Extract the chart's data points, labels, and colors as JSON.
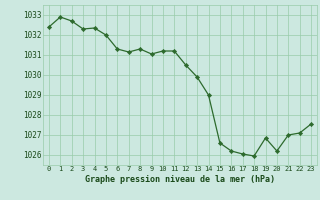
{
  "x": [
    0,
    1,
    2,
    3,
    4,
    5,
    6,
    7,
    8,
    9,
    10,
    11,
    12,
    13,
    14,
    15,
    16,
    17,
    18,
    19,
    20,
    21,
    22,
    23
  ],
  "y": [
    1032.4,
    1032.9,
    1032.7,
    1032.3,
    1032.35,
    1032.0,
    1031.3,
    1031.15,
    1031.3,
    1031.05,
    1031.2,
    1031.2,
    1030.5,
    1029.9,
    1029.0,
    1026.6,
    1026.2,
    1026.05,
    1025.95,
    1026.85,
    1026.2,
    1027.0,
    1027.1,
    1027.55
  ],
  "line_color": "#2d6a2d",
  "marker_color": "#2d6a2d",
  "bg_color": "#cce8e0",
  "grid_color": "#99ccaa",
  "xlabel": "Graphe pression niveau de la mer (hPa)",
  "xlabel_color": "#1a4a1a",
  "tick_color": "#1a4a1a",
  "ylim": [
    1025.5,
    1033.5
  ],
  "yticks": [
    1026,
    1027,
    1028,
    1029,
    1030,
    1031,
    1032,
    1033
  ],
  "xticks": [
    0,
    1,
    2,
    3,
    4,
    5,
    6,
    7,
    8,
    9,
    10,
    11,
    12,
    13,
    14,
    15,
    16,
    17,
    18,
    19,
    20,
    21,
    22,
    23
  ]
}
